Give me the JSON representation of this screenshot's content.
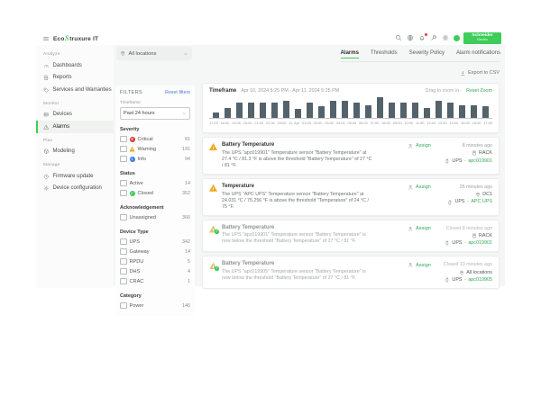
{
  "colors": {
    "brand_green": "#3dcd58",
    "link_green": "#35a85a",
    "reset_link_blue": "#4e7ad1",
    "bar_color": "#53626b",
    "critical_red": "#d6372e",
    "warning_yellow": "#f2a71f",
    "info_blue": "#3e7ee0",
    "closed_green": "#3dcd58",
    "content_bg": "#f5f6f6"
  },
  "brand": {
    "name_pre": "Eco",
    "name_glyph": "S",
    "name_post": "truxure IT",
    "se_line1": "Schneider",
    "se_line2": "Electric"
  },
  "topbar": {
    "icons": [
      {
        "name": "search-icon"
      },
      {
        "name": "globe-icon"
      },
      {
        "name": "bell-icon",
        "badge_dot": true
      },
      {
        "name": "wrench-icon"
      },
      {
        "name": "gear-icon"
      },
      {
        "name": "user-avatar"
      }
    ]
  },
  "sidebar": {
    "sections": [
      {
        "label": "Analyze",
        "items": [
          {
            "label": "Dashboards",
            "icon": "dashboards-icon"
          },
          {
            "label": "Reports",
            "icon": "reports-icon"
          },
          {
            "label": "Services and Warranties",
            "icon": "services-icon"
          }
        ]
      },
      {
        "label": "Monitor",
        "items": [
          {
            "label": "Devices",
            "icon": "devices-icon"
          },
          {
            "label": "Alarms",
            "icon": "alarms-icon",
            "active": true
          }
        ]
      },
      {
        "label": "Plan",
        "items": [
          {
            "label": "Modeling",
            "icon": "modeling-icon"
          }
        ]
      },
      {
        "label": "Manage",
        "items": [
          {
            "label": "Firmware update",
            "icon": "firmware-icon"
          },
          {
            "label": "Device configuration",
            "icon": "device-config-icon"
          }
        ]
      }
    ]
  },
  "location_selector": {
    "value": "All locations"
  },
  "tabs": [
    {
      "label": "Alarms",
      "active": true
    },
    {
      "label": "Thresholds",
      "active": false
    },
    {
      "label": "Severity Policy",
      "active": false
    },
    {
      "label": "Alarm notifications",
      "active": false
    }
  ],
  "actions": {
    "export_label": "Export to CSV"
  },
  "filters": {
    "title": "FILTERS",
    "reset_label": "Reset filters",
    "timeframe_label": "Timeframe",
    "timeframe_value": "Past 24 hours",
    "groups": [
      {
        "label": "Severity",
        "options": [
          {
            "label": "Critical",
            "count": "81",
            "icon": "critical"
          },
          {
            "label": "Warning",
            "count": "191",
            "icon": "warning"
          },
          {
            "label": "Info",
            "count": "94",
            "icon": "info"
          }
        ]
      },
      {
        "label": "Status",
        "options": [
          {
            "label": "Active",
            "count": "14",
            "icon": null
          },
          {
            "label": "Closed",
            "count": "352",
            "icon": "closed"
          }
        ]
      },
      {
        "label": "Acknowledgement",
        "options": [
          {
            "label": "Unassigned",
            "count": "366",
            "icon": null
          }
        ]
      },
      {
        "label": "Device Type",
        "options": [
          {
            "label": "UPS",
            "count": "342",
            "icon": null
          },
          {
            "label": "Gateway",
            "count": "14",
            "icon": null
          },
          {
            "label": "RPDU",
            "count": "5",
            "icon": null
          },
          {
            "label": "DHS",
            "count": "4",
            "icon": null
          },
          {
            "label": "CRAC",
            "count": "1",
            "icon": null
          }
        ]
      },
      {
        "label": "Category",
        "options": [
          {
            "label": "Power",
            "count": "146",
            "icon": null
          }
        ]
      }
    ]
  },
  "chart": {
    "title": "Timeframe",
    "range": "Apr 10, 2024 5:25 PM - Apr 11, 2024 5:25 PM",
    "drag_hint": "Drag to zoom in",
    "reset_label": "Reset Zoom"
  },
  "chart_data": {
    "type": "bar",
    "title": "Timeframe",
    "subtitle": "Apr 10, 2024 5:25 PM - Apr 11, 2024 5:25 PM",
    "x_tick_labels": [
      "17:00",
      "18:00",
      "19:00",
      "20:00",
      "21:00",
      "22:00",
      "23:00",
      "11. Apr",
      "01:00",
      "02:00",
      "03:00",
      "04:00",
      "05:00",
      "06:00",
      "07:00",
      "08:00",
      "09:00",
      "10:00",
      "11:00",
      "12:00",
      "13:00",
      "14:00",
      "15:00",
      "16:00",
      "17:00"
    ],
    "values": [
      4,
      8,
      12,
      12,
      12,
      12,
      13,
      7,
      12,
      9,
      13,
      13,
      12,
      10,
      16,
      12,
      12,
      12,
      8,
      13,
      12,
      10,
      10,
      9
    ],
    "ylabel": "",
    "xlabel": "",
    "ylim": [
      0,
      17
    ],
    "grid": false,
    "legend": false,
    "bar_color": "#53626b",
    "y_axis_hidden": true
  },
  "ui": {
    "device_sep": "-"
  },
  "alarms": [
    {
      "title": "Battery Temperature",
      "description": "The UPS \"apc019901\" Temperature sensor \"Battery Temperature\" at 27.4 °C / 81.3 °F is above the threshold \"Battery Temperature\" of 27 °C / 81 °F.",
      "severity": "warning",
      "status": "active",
      "assign_label": "Assign",
      "time": "8 minutes ago",
      "location": "RACK",
      "device_type": "UPS",
      "device_name": "apc019901"
    },
    {
      "title": "Temperature",
      "description": "The UPS \"APC UPS\" Temperature sensor \"Battery Temperature\" at 24.031 °C / 75.256 °F is above the threshold \"Temperature\" of 24 °C / 75 °F.",
      "severity": "warning",
      "status": "active",
      "assign_label": "Assign",
      "time": "26 minutes ago",
      "location": "DC1",
      "device_type": "UPS",
      "device_name": "APC UPS"
    },
    {
      "title": "Battery Temperature",
      "description": "The UPS \"apc019901\" Temperature sensor \"Battery Temperature\" is now below the threshold \"Battery Temperature\" of 27 °C / 81 °F.",
      "severity": "warning",
      "status": "closed",
      "assign_label": "Assign",
      "time": "Closed 8 minutes ago",
      "location": "RACK",
      "device_type": "UPS",
      "device_name": "apc019901"
    },
    {
      "title": "Battery Temperature",
      "description": "The UPS \"apc019905\" Temperature sensor \"Battery Temperature\" is now below the threshold \"Battery Temperature\" of 27 °C / 81 °F.",
      "severity": "warning",
      "status": "closed",
      "assign_label": "Assign",
      "time": "Closed 10 minutes ago",
      "location": "All locations",
      "device_type": "UPS",
      "device_name": "apc019905"
    }
  ]
}
